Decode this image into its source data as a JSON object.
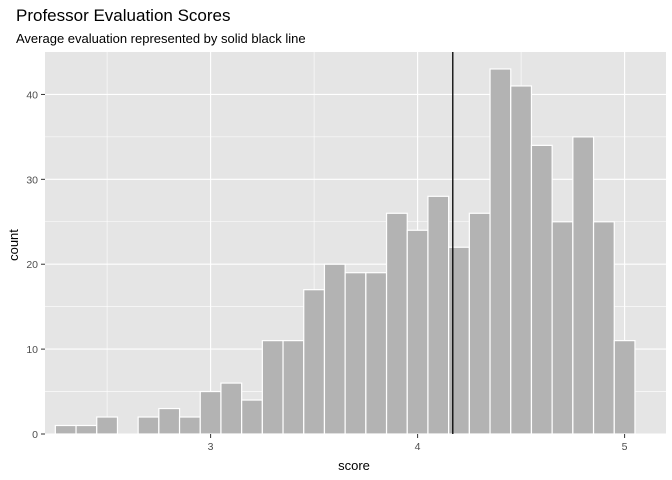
{
  "chart_data": {
    "type": "bar",
    "title": "Professor Evaluation Scores",
    "subtitle": "Average evaluation represented by solid black line",
    "xlabel": "score",
    "ylabel": "count",
    "xlim": [
      2.2,
      5.2
    ],
    "ylim": [
      0,
      45
    ],
    "x_ticks": [
      3,
      4,
      5
    ],
    "y_ticks": [
      0,
      10,
      20,
      30,
      40
    ],
    "bin_width": 0.1,
    "bins": [
      {
        "x": 2.3,
        "count": 1
      },
      {
        "x": 2.4,
        "count": 1
      },
      {
        "x": 2.5,
        "count": 2
      },
      {
        "x": 2.7,
        "count": 2
      },
      {
        "x": 2.8,
        "count": 3
      },
      {
        "x": 2.9,
        "count": 2
      },
      {
        "x": 3.0,
        "count": 5
      },
      {
        "x": 3.1,
        "count": 6
      },
      {
        "x": 3.2,
        "count": 4
      },
      {
        "x": 3.3,
        "count": 11
      },
      {
        "x": 3.4,
        "count": 11
      },
      {
        "x": 3.5,
        "count": 17
      },
      {
        "x": 3.6,
        "count": 20
      },
      {
        "x": 3.7,
        "count": 19
      },
      {
        "x": 3.8,
        "count": 19
      },
      {
        "x": 3.9,
        "count": 26
      },
      {
        "x": 4.0,
        "count": 24
      },
      {
        "x": 4.1,
        "count": 28
      },
      {
        "x": 4.2,
        "count": 22
      },
      {
        "x": 4.3,
        "count": 26
      },
      {
        "x": 4.4,
        "count": 43
      },
      {
        "x": 4.5,
        "count": 41
      },
      {
        "x": 4.6,
        "count": 34
      },
      {
        "x": 4.7,
        "count": 25
      },
      {
        "x": 4.8,
        "count": 35
      },
      {
        "x": 4.9,
        "count": 25
      },
      {
        "x": 5.0,
        "count": 11
      }
    ],
    "mean_line": 4.17,
    "grid": true,
    "colors": {
      "panel_background": "#e5e5e5",
      "grid_line": "#ffffff",
      "bar_fill": "#b3b3b3",
      "mean_line": "#000000"
    }
  }
}
